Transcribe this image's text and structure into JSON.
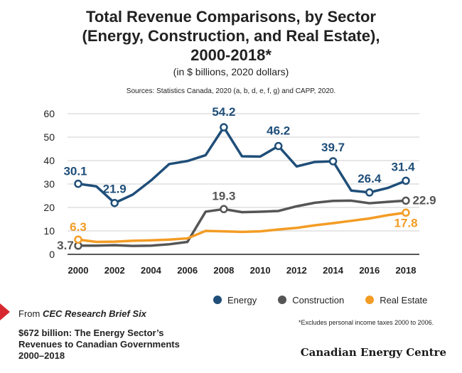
{
  "header": {
    "title_lines": [
      "Total Revenue Comparisons, by Sector",
      "(Energy, Construction, and Real Estate),",
      "2000-2018*"
    ],
    "subtitle": "(in $ billions, 2020 dollars)",
    "sources": "Sources: Statistics Canada, 2020 (a, b, d, e, f, g) and CAPP, 2020."
  },
  "chart_data": {
    "type": "line",
    "x": [
      2000,
      2001,
      2002,
      2003,
      2004,
      2005,
      2006,
      2007,
      2008,
      2009,
      2010,
      2011,
      2012,
      2013,
      2014,
      2015,
      2016,
      2017,
      2018
    ],
    "xticks": [
      2000,
      2002,
      2004,
      2006,
      2008,
      2010,
      2012,
      2014,
      2016,
      2018
    ],
    "ylim": [
      0,
      60
    ],
    "yticks": [
      0,
      10,
      20,
      30,
      40,
      50,
      60
    ],
    "grid": "horizontal",
    "legend_position": "bottom-right",
    "series": [
      {
        "name": "Energy",
        "color": "#1f4e79",
        "values": [
          30.1,
          29.0,
          21.9,
          25.5,
          31.5,
          38.5,
          39.8,
          42.3,
          54.2,
          41.8,
          41.7,
          46.2,
          37.5,
          39.4,
          39.7,
          27.2,
          26.4,
          28.3,
          31.4
        ],
        "labels": [
          {
            "x": 2000,
            "text": "30.1"
          },
          {
            "x": 2002,
            "text": "21.9"
          },
          {
            "x": 2008,
            "text": "54.2"
          },
          {
            "x": 2011,
            "text": "46.2"
          },
          {
            "x": 2014,
            "text": "39.7"
          },
          {
            "x": 2016,
            "text": "26.4"
          },
          {
            "x": 2018,
            "text": "31.4"
          }
        ]
      },
      {
        "name": "Construction",
        "color": "#555555",
        "values": [
          3.7,
          3.7,
          3.9,
          3.6,
          3.7,
          4.3,
          5.3,
          18.2,
          19.3,
          18.0,
          18.2,
          18.5,
          20.5,
          22.0,
          22.8,
          22.9,
          21.8,
          22.4,
          22.9
        ],
        "labels": [
          {
            "x": 2000,
            "text": "3.7"
          },
          {
            "x": 2008,
            "text": "19.3"
          },
          {
            "x": 2018,
            "text": "22.9"
          }
        ]
      },
      {
        "name": "Real Estate",
        "color": "#f39c24",
        "values": [
          6.3,
          5.3,
          5.4,
          5.8,
          6.0,
          6.3,
          6.8,
          10.0,
          9.8,
          9.6,
          9.8,
          10.6,
          11.3,
          12.4,
          13.3,
          14.3,
          15.3,
          16.7,
          17.8
        ],
        "labels": [
          {
            "x": 2000,
            "text": "6.3"
          },
          {
            "x": 2018,
            "text": "17.8"
          }
        ]
      }
    ]
  },
  "footnote": "*Excludes personal income taxes 2000 to 2006.",
  "footer": {
    "from_prefix": "From ",
    "from_source": "CEC Research Brief Six",
    "brief_lines": [
      "$672 billion: The Energy Sector’s",
      "Revenues to Canadian Governments",
      "2000–2018"
    ],
    "brand": "Canadian Energy Centre"
  }
}
